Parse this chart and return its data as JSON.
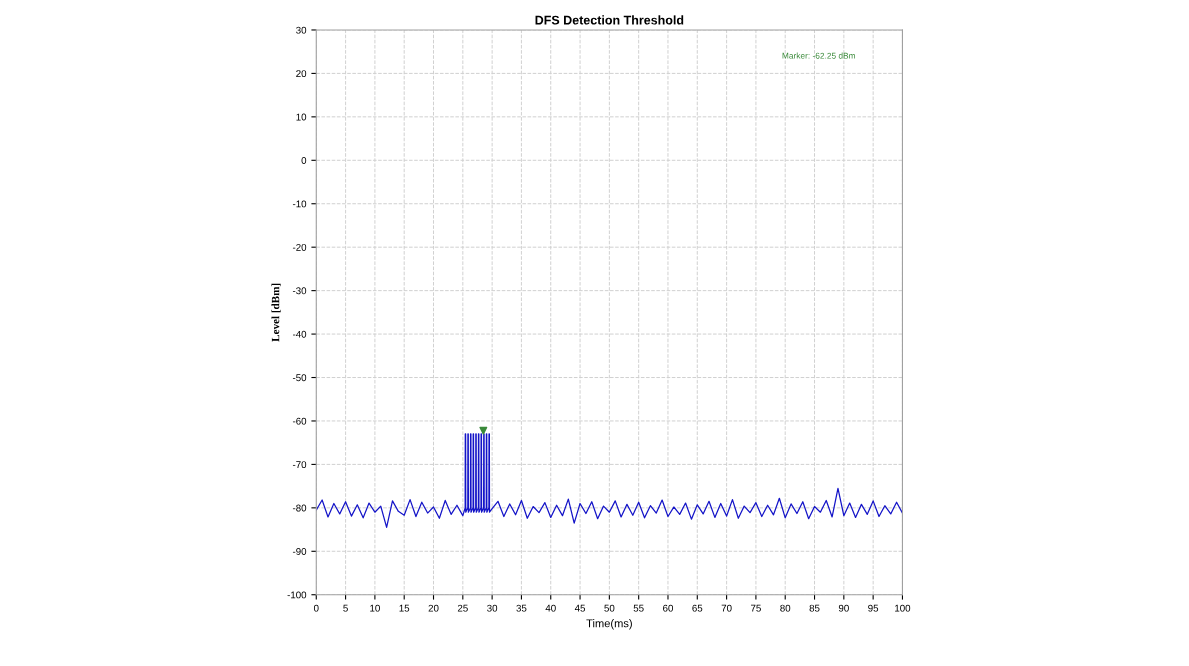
{
  "chart_data": {
    "type": "line",
    "title": "DFS Detection Threshold",
    "xlabel": "Time(ms)",
    "ylabel": "Level [dBm]",
    "xlim": [
      0,
      100
    ],
    "xticks": [
      0,
      5,
      10,
      15,
      20,
      25,
      30,
      35,
      40,
      45,
      50,
      55,
      60,
      65,
      70,
      75,
      80,
      85,
      90,
      95,
      100
    ],
    "ylim": [
      -100,
      30
    ],
    "yticks": [
      -100,
      -90,
      -80,
      -70,
      -60,
      -50,
      -40,
      -30,
      -20,
      -10,
      0,
      10,
      20,
      30
    ],
    "grid": true,
    "line_style": "solid",
    "annotations": [
      "Marker: -62.25 dBm"
    ],
    "series": [
      {
        "color": "#1414c8",
        "marker": "none",
        "x": [
          0,
          1,
          2,
          3,
          4,
          5,
          6,
          7,
          8,
          9,
          10,
          11,
          12,
          13,
          14,
          15,
          16,
          17,
          18,
          19,
          20,
          21,
          22,
          23,
          24,
          25,
          25.4,
          25.42,
          25.48,
          25.5,
          25.85,
          25.87,
          25.93,
          25.95,
          26.3,
          26.32,
          26.38,
          26.4,
          26.75,
          26.77,
          26.83,
          26.85,
          27.2,
          27.22,
          27.28,
          27.3,
          27.65,
          27.67,
          27.73,
          27.75,
          28.1,
          28.12,
          28.18,
          28.2,
          28.55,
          28.57,
          28.63,
          28.65,
          29.0,
          29.02,
          29.08,
          29.1,
          29.45,
          29.47,
          29.53,
          29.55,
          30,
          31,
          32,
          33,
          34,
          35,
          36,
          37,
          38,
          39,
          40,
          41,
          42,
          43,
          44,
          45,
          46,
          47,
          48,
          49,
          50,
          51,
          52,
          53,
          54,
          55,
          56,
          57,
          58,
          59,
          60,
          61,
          62,
          63,
          64,
          65,
          66,
          67,
          68,
          69,
          70,
          71,
          72,
          73,
          74,
          75,
          76,
          77,
          78,
          79,
          80,
          81,
          82,
          83,
          84,
          85,
          86,
          87,
          88,
          89,
          90,
          91,
          92,
          93,
          94,
          95,
          96,
          97,
          98,
          99,
          100
        ],
        "values": [
          -80.5,
          -78.2,
          -82.1,
          -79.0,
          -81.4,
          -78.6,
          -81.9,
          -79.3,
          -82.3,
          -78.9,
          -81.0,
          -79.6,
          -84.5,
          -78.4,
          -80.8,
          -81.7,
          -78.1,
          -82.0,
          -78.7,
          -81.2,
          -79.8,
          -82.4,
          -78.3,
          -81.5,
          -79.4,
          -81.8,
          -80.0,
          -63,
          -63,
          -81.0,
          -80.0,
          -63,
          -63,
          -81.0,
          -80.0,
          -63,
          -63,
          -81.0,
          -80.0,
          -63,
          -63,
          -81.0,
          -80.0,
          -63,
          -63,
          -81.0,
          -80.0,
          -63,
          -63,
          -81.0,
          -80.0,
          -63,
          -63,
          -81.0,
          -80.0,
          -63,
          -63,
          -81.0,
          -80.0,
          -63,
          -63,
          -81.0,
          -80.0,
          -63,
          -63,
          -81.0,
          -80.2,
          -78.5,
          -82.0,
          -79.1,
          -81.6,
          -78.3,
          -82.4,
          -79.7,
          -81.1,
          -78.8,
          -82.2,
          -79.4,
          -81.8,
          -78.0,
          -83.5,
          -79.0,
          -81.3,
          -78.6,
          -82.5,
          -79.6,
          -81.0,
          -78.4,
          -82.1,
          -79.2,
          -81.7,
          -78.7,
          -82.3,
          -79.5,
          -81.2,
          -78.2,
          -82.0,
          -79.8,
          -81.5,
          -78.9,
          -82.6,
          -79.3,
          -81.4,
          -78.5,
          -82.2,
          -79.0,
          -81.9,
          -78.1,
          -82.4,
          -79.6,
          -81.1,
          -78.8,
          -82.0,
          -79.4,
          -81.6,
          -77.8,
          -82.3,
          -79.1,
          -81.3,
          -78.6,
          -82.5,
          -79.7,
          -81.0,
          -78.3,
          -82.1,
          -75.5,
          -81.8,
          -78.9,
          -82.2,
          -79.2,
          -81.5,
          -78.4,
          -82.0,
          -79.5,
          -81.4,
          -78.7,
          -81.2
        ]
      },
      {
        "type": "scatter",
        "color": "#3a8a3a",
        "marker": "triangle",
        "x": [
          28.5
        ],
        "values": [
          -62.25
        ]
      }
    ]
  }
}
